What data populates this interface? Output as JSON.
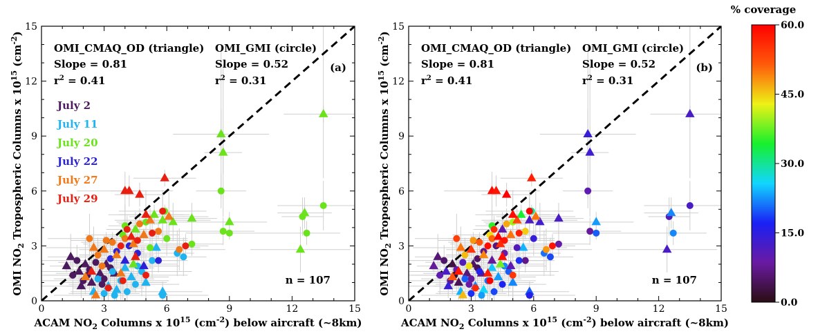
{
  "chart_data": [
    {
      "type": "scatter",
      "panel_label": "(a)",
      "color_mode": "date",
      "xlabel_parts": [
        "ACAM NO",
        "2",
        " Columns x 10",
        "15",
        " (cm",
        "-2",
        ") below aircraft (~8km)"
      ],
      "ylabel_parts": [
        "OMI NO",
        "2",
        " Tropospheric Columns x 10",
        "15",
        " (cm",
        "-2",
        ")"
      ],
      "xlim": [
        0,
        15
      ],
      "ylim": [
        0,
        15
      ],
      "xticks": [
        "0",
        "3",
        "6",
        "9",
        "12",
        "15"
      ],
      "yticks": [
        "0",
        "3",
        "6",
        "9",
        "12",
        "15"
      ],
      "one_to_one_line": true,
      "annotations": {
        "left_title": "OMI_CMAQ_OD (triangle)",
        "left_slope": "Slope =  0.81",
        "left_r_pre": "r",
        "left_r_sup": "2",
        "left_r_post": " =  0.41",
        "right_title": "OMI_GMI (circle)",
        "right_slope": "Slope =  0.52",
        "right_r_pre": "r",
        "right_r_sup": "2",
        "right_r_post": " =  0.31",
        "n": "n = 107"
      },
      "legend": [
        {
          "label": "July 2",
          "color": "#4b1a5e"
        },
        {
          "label": "July 11",
          "color": "#1fb4f0"
        },
        {
          "label": "July 20",
          "color": "#6ae21c"
        },
        {
          "label": "July 22",
          "color": "#2b22d6"
        },
        {
          "label": "July 27",
          "color": "#f07818"
        },
        {
          "label": "July 29",
          "color": "#e81e10"
        }
      ]
    },
    {
      "type": "scatter",
      "panel_label": "(b)",
      "color_mode": "coverage",
      "xlabel_parts": [
        "ACAM NO",
        "2",
        " Columns x 10",
        "15",
        " (cm",
        "-2",
        ") below aircraft (~8km)"
      ],
      "ylabel_parts": [
        "OMI NO",
        "2",
        " Tropospheric Columns x 10",
        "15",
        " (cm",
        "-2",
        ")"
      ],
      "xlim": [
        0,
        15
      ],
      "ylim": [
        0,
        15
      ],
      "xticks": [
        "0",
        "3",
        "6",
        "9",
        "12",
        "15"
      ],
      "yticks": [
        "0",
        "3",
        "6",
        "9",
        "12",
        "15"
      ],
      "one_to_one_line": true,
      "annotations": {
        "left_title": "OMI_CMAQ_OD (triangle)",
        "left_slope": "Slope =  0.81",
        "left_r_pre": "r",
        "left_r_sup": "2",
        "left_r_post": " =  0.41",
        "right_title": "OMI_GMI (circle)",
        "right_slope": "Slope =  0.52",
        "right_r_pre": "r",
        "right_r_sup": "2",
        "right_r_post": " =  0.31",
        "n": "n = 107"
      }
    }
  ],
  "points": [
    {
      "x": 1.2,
      "y": 1.9,
      "m": "t",
      "d": 0,
      "c": 8
    },
    {
      "x": 1.4,
      "y": 2.4,
      "m": "t",
      "d": 0,
      "c": 6
    },
    {
      "x": 1.5,
      "y": 1.4,
      "m": "c",
      "d": 0,
      "c": 10
    },
    {
      "x": 1.7,
      "y": 2.2,
      "m": "c",
      "d": 0,
      "c": 5
    },
    {
      "x": 1.8,
      "y": 1.6,
      "m": "t",
      "d": 0,
      "c": 12
    },
    {
      "x": 2.0,
      "y": 1.1,
      "m": "c",
      "d": 0,
      "c": 7
    },
    {
      "x": 2.1,
      "y": 2.0,
      "m": "t",
      "d": 0,
      "c": 3
    },
    {
      "x": 2.3,
      "y": 1.7,
      "m": "c",
      "d": 0,
      "c": 9
    },
    {
      "x": 2.4,
      "y": 1.0,
      "m": "t",
      "d": 0,
      "c": 4
    },
    {
      "x": 2.6,
      "y": 2.1,
      "m": "c",
      "d": 0,
      "c": 11
    },
    {
      "x": 2.8,
      "y": 1.5,
      "m": "t",
      "d": 0,
      "c": 6
    },
    {
      "x": 3.0,
      "y": 1.2,
      "m": "c",
      "d": 0,
      "c": 8
    },
    {
      "x": 3.1,
      "y": 2.0,
      "m": "t",
      "d": 0,
      "c": 5
    },
    {
      "x": 3.3,
      "y": 1.8,
      "m": "c",
      "d": 0,
      "c": 4
    },
    {
      "x": 2.9,
      "y": 0.9,
      "m": "c",
      "d": 0,
      "c": 9
    },
    {
      "x": 1.9,
      "y": 0.8,
      "m": "t",
      "d": 0,
      "c": 14
    },
    {
      "x": 2.2,
      "y": 1.4,
      "m": "c",
      "d": 0,
      "c": 2
    },
    {
      "x": 3.5,
      "y": 1.5,
      "m": "t",
      "d": 0,
      "c": 7
    },
    {
      "x": 2.5,
      "y": 0.5,
      "m": "t",
      "d": 1,
      "c": 24
    },
    {
      "x": 2.7,
      "y": 1.2,
      "m": "c",
      "d": 1,
      "c": 20
    },
    {
      "x": 3.0,
      "y": 0.4,
      "m": "c",
      "d": 1,
      "c": 18
    },
    {
      "x": 3.2,
      "y": 0.8,
      "m": "t",
      "d": 1,
      "c": 22
    },
    {
      "x": 3.4,
      "y": 1.6,
      "m": "c",
      "d": 1,
      "c": 16
    },
    {
      "x": 3.6,
      "y": 0.6,
      "m": "t",
      "d": 1,
      "c": 26
    },
    {
      "x": 3.8,
      "y": 1.1,
      "m": "c",
      "d": 1,
      "c": 21
    },
    {
      "x": 4.1,
      "y": 0.5,
      "m": "c",
      "d": 1,
      "c": 19
    },
    {
      "x": 4.3,
      "y": 1.3,
      "m": "t",
      "d": 1,
      "c": 23
    },
    {
      "x": 4.5,
      "y": 0.9,
      "m": "c",
      "d": 1,
      "c": 17
    },
    {
      "x": 4.8,
      "y": 1.6,
      "m": "c",
      "d": 1,
      "c": 20
    },
    {
      "x": 5.0,
      "y": 1.0,
      "m": "t",
      "d": 1,
      "c": 22
    },
    {
      "x": 5.3,
      "y": 2.2,
      "m": "c",
      "d": 1,
      "c": 18
    },
    {
      "x": 5.5,
      "y": 2.9,
      "m": "t",
      "d": 1,
      "c": 24
    },
    {
      "x": 5.8,
      "y": 0.5,
      "m": "t",
      "d": 1,
      "c": 20
    },
    {
      "x": 5.8,
      "y": 0.3,
      "m": "c",
      "d": 1,
      "c": 16
    },
    {
      "x": 6.5,
      "y": 2.6,
      "m": "c",
      "d": 1,
      "c": 21
    },
    {
      "x": 6.8,
      "y": 2.4,
      "m": "c",
      "d": 1,
      "c": 19
    },
    {
      "x": 4.0,
      "y": 1.8,
      "m": "t",
      "d": 1,
      "c": 25
    },
    {
      "x": 3.5,
      "y": 0.3,
      "m": "c",
      "d": 1,
      "c": 23
    },
    {
      "x": 4.6,
      "y": 1.9,
      "m": "c",
      "d": 1,
      "c": 22
    },
    {
      "x": 8.6,
      "y": 9.1,
      "m": "t",
      "d": 2,
      "c": 14
    },
    {
      "x": 8.7,
      "y": 8.1,
      "m": "t",
      "d": 2,
      "c": 13
    },
    {
      "x": 8.6,
      "y": 6.0,
      "m": "c",
      "d": 2,
      "c": 10
    },
    {
      "x": 8.7,
      "y": 3.8,
      "m": "c",
      "d": 2,
      "c": 8
    },
    {
      "x": 9.0,
      "y": 4.3,
      "m": "t",
      "d": 2,
      "c": 23
    },
    {
      "x": 9.0,
      "y": 3.7,
      "m": "c",
      "d": 2,
      "c": 20
    },
    {
      "x": 12.4,
      "y": 2.8,
      "m": "t",
      "d": 2,
      "c": 12
    },
    {
      "x": 12.5,
      "y": 4.6,
      "m": "c",
      "d": 2,
      "c": 11
    },
    {
      "x": 12.6,
      "y": 4.8,
      "m": "t",
      "d": 2,
      "c": 22
    },
    {
      "x": 12.7,
      "y": 3.7,
      "m": "c",
      "d": 2,
      "c": 22
    },
    {
      "x": 13.5,
      "y": 10.2,
      "m": "t",
      "d": 2,
      "c": 12
    },
    {
      "x": 13.5,
      "y": 5.2,
      "m": "c",
      "d": 2,
      "c": 12
    },
    {
      "x": 4.0,
      "y": 4.1,
      "m": "c",
      "d": 2,
      "c": 35
    },
    {
      "x": 4.5,
      "y": 3.9,
      "m": "t",
      "d": 2,
      "c": 10
    },
    {
      "x": 5.0,
      "y": 4.3,
      "m": "c",
      "d": 2,
      "c": 40
    },
    {
      "x": 5.4,
      "y": 4.7,
      "m": "t",
      "d": 2,
      "c": 34
    },
    {
      "x": 5.9,
      "y": 4.9,
      "m": "c",
      "d": 2,
      "c": 30
    },
    {
      "x": 5.8,
      "y": 4.4,
      "m": "t",
      "d": 2,
      "c": 12
    },
    {
      "x": 6.3,
      "y": 4.3,
      "m": "t",
      "d": 2,
      "c": 13
    },
    {
      "x": 7.2,
      "y": 4.5,
      "m": "t",
      "d": 2,
      "c": 12
    },
    {
      "x": 7.2,
      "y": 3.1,
      "m": "c",
      "d": 2,
      "c": 9
    },
    {
      "x": 3.9,
      "y": 3.6,
      "m": "c",
      "d": 2,
      "c": 44
    },
    {
      "x": 4.4,
      "y": 2.0,
      "m": "t",
      "d": 2,
      "c": 38
    },
    {
      "x": 5.2,
      "y": 2.9,
      "m": "c",
      "d": 2,
      "c": 11
    },
    {
      "x": 6.0,
      "y": 3.4,
      "m": "c",
      "d": 2,
      "c": 14
    },
    {
      "x": 3.6,
      "y": 2.7,
      "m": "c",
      "d": 3,
      "c": 7
    },
    {
      "x": 4.0,
      "y": 2.2,
      "m": "t",
      "d": 3,
      "c": 8
    },
    {
      "x": 4.2,
      "y": 3.0,
      "m": "c",
      "d": 3,
      "c": 6
    },
    {
      "x": 4.6,
      "y": 2.6,
      "m": "c",
      "d": 3,
      "c": 9
    },
    {
      "x": 4.9,
      "y": 1.9,
      "m": "t",
      "d": 3,
      "c": 10
    },
    {
      "x": 3.3,
      "y": 2.3,
      "m": "c",
      "d": 3,
      "c": 5
    },
    {
      "x": 5.6,
      "y": 2.2,
      "m": "c",
      "d": 3,
      "c": 7
    },
    {
      "x": 3.1,
      "y": 3.3,
      "m": "c",
      "d": 4,
      "c": 48
    },
    {
      "x": 2.3,
      "y": 3.4,
      "m": "c",
      "d": 4,
      "c": 54
    },
    {
      "x": 2.5,
      "y": 2.9,
      "m": "t",
      "d": 4,
      "c": 50
    },
    {
      "x": 2.7,
      "y": 2.5,
      "m": "c",
      "d": 4,
      "c": 46
    },
    {
      "x": 3.0,
      "y": 2.8,
      "m": "t",
      "d": 4,
      "c": 55
    },
    {
      "x": 3.4,
      "y": 3.2,
      "m": "c",
      "d": 4,
      "c": 52
    },
    {
      "x": 3.6,
      "y": 2.5,
      "m": "t",
      "d": 4,
      "c": 49
    },
    {
      "x": 4.0,
      "y": 3.4,
      "m": "c",
      "d": 4,
      "c": 51
    },
    {
      "x": 4.4,
      "y": 3.1,
      "m": "t",
      "d": 4,
      "c": 56
    },
    {
      "x": 4.7,
      "y": 4.2,
      "m": "c",
      "d": 4,
      "c": 47
    },
    {
      "x": 5.2,
      "y": 4.4,
      "m": "t",
      "d": 4,
      "c": 53
    },
    {
      "x": 5.6,
      "y": 3.8,
      "m": "c",
      "d": 4,
      "c": 45
    },
    {
      "x": 6.1,
      "y": 4.6,
      "m": "t",
      "d": 4,
      "c": 50
    },
    {
      "x": 6.6,
      "y": 2.8,
      "m": "c",
      "d": 4,
      "c": 48
    },
    {
      "x": 2.1,
      "y": 1.3,
      "m": "t",
      "d": 4,
      "c": 52
    },
    {
      "x": 2.9,
      "y": 1.9,
      "m": "c",
      "d": 4,
      "c": 44
    },
    {
      "x": 3.8,
      "y": 1.5,
      "m": "t",
      "d": 4,
      "c": 57
    },
    {
      "x": 4.9,
      "y": 3.6,
      "m": "t",
      "d": 4,
      "c": 50
    },
    {
      "x": 2.6,
      "y": 0.3,
      "m": "t",
      "d": 4,
      "c": 46
    },
    {
      "x": 4.0,
      "y": 6.0,
      "m": "t",
      "d": 5,
      "c": 59
    },
    {
      "x": 4.2,
      "y": 6.0,
      "m": "t",
      "d": 5,
      "c": 58
    },
    {
      "x": 4.7,
      "y": 5.8,
      "m": "t",
      "d": 5,
      "c": 60
    },
    {
      "x": 5.9,
      "y": 6.7,
      "m": "t",
      "d": 5,
      "c": 57
    },
    {
      "x": 5.0,
      "y": 4.7,
      "m": "t",
      "d": 5,
      "c": 59
    },
    {
      "x": 5.8,
      "y": 4.9,
      "m": "c",
      "d": 5,
      "c": 60
    },
    {
      "x": 4.6,
      "y": 3.3,
      "m": "c",
      "d": 5,
      "c": 58
    },
    {
      "x": 4.1,
      "y": 3.9,
      "m": "c",
      "d": 5,
      "c": 56
    },
    {
      "x": 4.3,
      "y": 3.5,
      "m": "t",
      "d": 5,
      "c": 60
    },
    {
      "x": 3.8,
      "y": 3.0,
      "m": "c",
      "d": 5,
      "c": 59
    },
    {
      "x": 2.4,
      "y": 1.6,
      "m": "t",
      "d": 5,
      "c": 58
    },
    {
      "x": 3.9,
      "y": 1.1,
      "m": "c",
      "d": 5,
      "c": 60
    },
    {
      "x": 5.3,
      "y": 3.7,
      "m": "c",
      "d": 5,
      "c": 57
    },
    {
      "x": 6.9,
      "y": 3.0,
      "m": "c",
      "d": 5,
      "c": 58
    },
    {
      "x": 4.5,
      "y": 2.4,
      "m": "t",
      "d": 5,
      "c": 59
    },
    {
      "x": 3.2,
      "y": 0.7,
      "m": "c",
      "d": 5,
      "c": 56
    },
    {
      "x": 5.0,
      "y": 1.4,
      "m": "c",
      "d": 5,
      "c": 55
    }
  ],
  "colorbar": {
    "title": "% coverage",
    "ticks": [
      "60.0",
      "45.0",
      "30.0",
      "15.0",
      "0.0"
    ],
    "range": [
      0,
      60
    ],
    "stops": [
      "#2a0d12",
      "#6a1aa2",
      "#1a20f5",
      "#11d6ff",
      "#17f02c",
      "#eef116",
      "#ff5a0a",
      "#ff0000"
    ]
  }
}
